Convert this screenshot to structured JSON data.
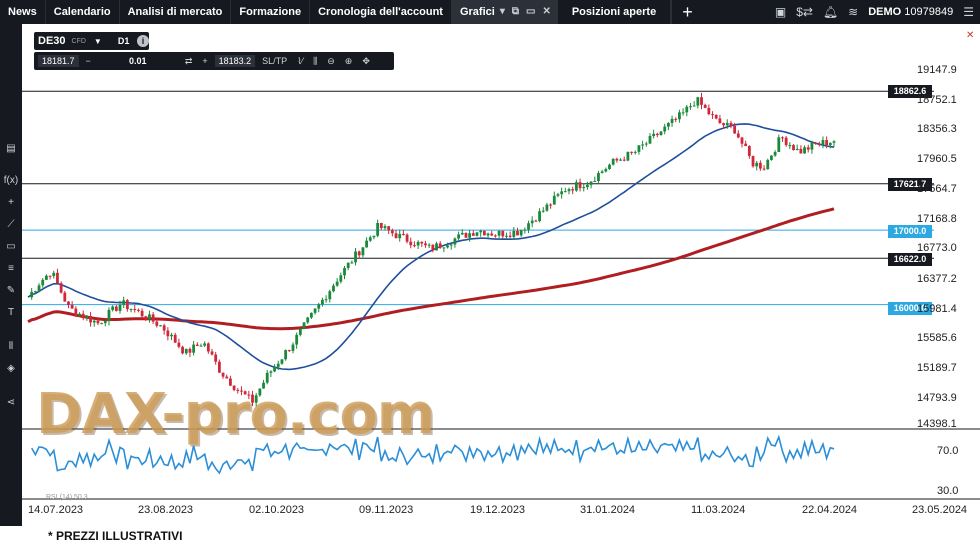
{
  "nav": {
    "tabs": [
      "News",
      "Calendario",
      "Analisi di mercato",
      "Formazione",
      "Cronologia dell'account",
      "Grafici",
      "Posizioni aperte"
    ],
    "active_tab": "Grafici",
    "account_mode": "DEMO",
    "account_number": "10979849"
  },
  "instrument": {
    "symbol": "DE30",
    "symbol_sub": "CFD",
    "timeframe": "D1",
    "bid": "18181.7",
    "quantity": "0.01",
    "ask": "18183.2",
    "sltp_label": "SL/TP"
  },
  "price_axis": {
    "ticks": [
      "19147.9",
      "18752.1",
      "18356.3",
      "17960.5",
      "17564.7",
      "17168.8",
      "16773.0",
      "16377.2",
      "15981.4",
      "15585.6",
      "15189.7",
      "14793.9",
      "14398.1"
    ]
  },
  "rsi_axis": {
    "ticks": [
      "70.0",
      "30.0"
    ],
    "label": "RSI (14) 50.3"
  },
  "date_axis": {
    "ticks": [
      "14.07.2023",
      "23.08.2023",
      "02.10.2023",
      "09.11.2023",
      "19.12.2023",
      "31.01.2024",
      "11.03.2024",
      "22.04.2024",
      "23.05.2024"
    ]
  },
  "levels": [
    {
      "value": "18862.6",
      "color": "#16191f"
    },
    {
      "value": "17621.7",
      "color": "#16191f"
    },
    {
      "value": "17000.0",
      "color": "#2ea8e0"
    },
    {
      "value": "16622.0",
      "color": "#16191f"
    },
    {
      "value": "16000.0",
      "color": "#2ea8e0"
    }
  ],
  "colors": {
    "up": "#1a8a3a",
    "down": "#d0283a",
    "ma_fast": "#1f4f9c",
    "ma_slow": "#b01e22",
    "rsi": "#2a8fd8",
    "horizontal": "#16191f",
    "blue_level": "#2ea8e0"
  },
  "watermark": "DAX-pro.com",
  "disclaimer": "* PREZZI ILLUSTRATIVI"
}
